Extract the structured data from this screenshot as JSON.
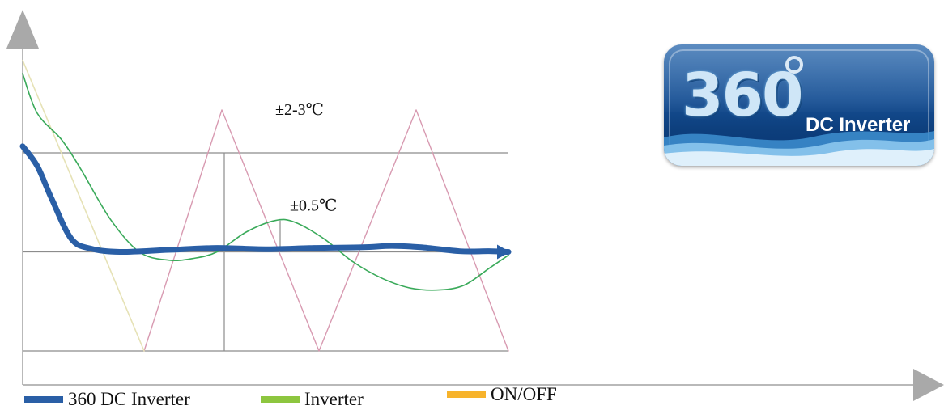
{
  "chart_data": {
    "type": "line",
    "title": "",
    "xlabel": "",
    "ylabel": "",
    "xlim": [
      0,
      100
    ],
    "ylim": [
      0,
      100
    ],
    "grid": "horizontal lines at y=20, y=50, y=80",
    "annotations": [
      {
        "text": "±2-3℃",
        "x": 52,
        "y": 93
      },
      {
        "text": "±0.5℃",
        "x": 55,
        "y": 64
      }
    ],
    "series": [
      {
        "name": "360 DC Inverter",
        "color": "#2a5fa6",
        "x": [
          0,
          3,
          6,
          10,
          14,
          20,
          30,
          40,
          50,
          60,
          70,
          76,
          82,
          90,
          96,
          100
        ],
        "y": [
          82,
          76,
          66,
          54,
          51,
          50,
          50.6,
          51.2,
          50.8,
          51.2,
          51.4,
          51.8,
          51.4,
          50.2,
          50.2,
          50.0
        ]
      },
      {
        "name": "Inverter",
        "color": "#3aaa5a",
        "x": [
          0,
          3,
          8,
          12,
          18,
          24,
          30,
          35,
          40,
          46,
          52,
          56,
          62,
          68,
          74,
          80,
          86,
          91,
          96,
          100
        ],
        "y": [
          104,
          92,
          84,
          75,
          60,
          50,
          47.5,
          48,
          50,
          56,
          59.5,
          59,
          54,
          47,
          42,
          39,
          38.5,
          40,
          45,
          49
        ]
      },
      {
        "name": "ON/OFF",
        "color": "#f7b32b",
        "x": [
          0,
          25
        ],
        "y": [
          108,
          20
        ]
      },
      {
        "name": "",
        "color": "#d89ab1",
        "x": [
          25,
          41,
          61,
          81,
          100
        ],
        "y": [
          20,
          93,
          20,
          93,
          20
        ]
      }
    ]
  },
  "legend": {
    "items": [
      {
        "label": "360 DC Inverter",
        "color": "#2a5fa6"
      },
      {
        "label": "Inverter",
        "color": "#8dc63f"
      },
      {
        "label": "ON/OFF",
        "color": "#f7b32b"
      }
    ]
  },
  "badge": {
    "number": "360",
    "text": "DC Inverter"
  }
}
